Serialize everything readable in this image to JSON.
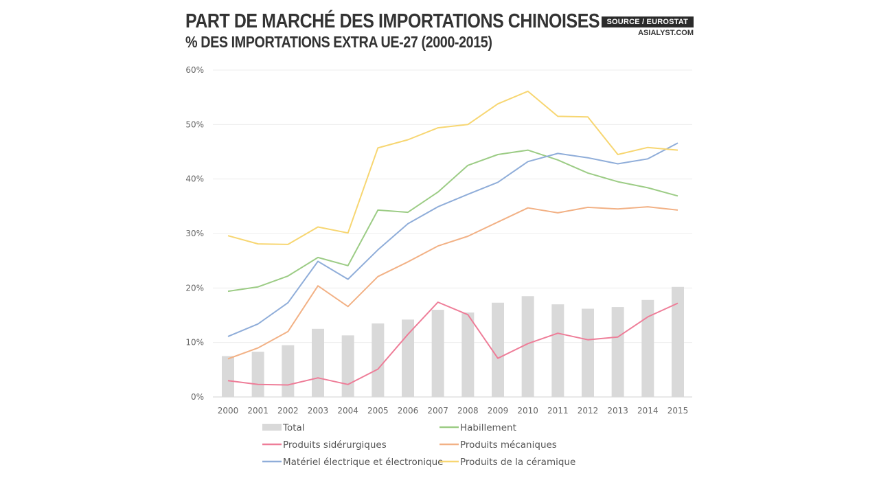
{
  "header": {
    "title": "PART DE MARCHÉ DES IMPORTATIONS CHINOISES",
    "subtitle": "% DES IMPORTATIONS EXTRA UE-27 (2000-2015)",
    "source": "SOURCE / EUROSTAT",
    "site": "ASIALYST.COM"
  },
  "chart_data": {
    "type": "bar",
    "categories": [
      "2000",
      "2001",
      "2002",
      "2003",
      "2004",
      "2005",
      "2006",
      "2007",
      "2008",
      "2009",
      "2010",
      "2011",
      "2012",
      "2013",
      "2014",
      "2015"
    ],
    "ylim": [
      0,
      60
    ],
    "yticks": [
      "0%",
      "10%",
      "20%",
      "30%",
      "40%",
      "50%",
      "60%"
    ],
    "ytick_values": [
      0,
      10,
      20,
      30,
      40,
      50,
      60
    ],
    "grid": true,
    "legend_position": "bottom",
    "bar_series": {
      "name": "Total",
      "color": "#d9d9d9",
      "values": [
        7.5,
        8.3,
        9.5,
        12.5,
        11.3,
        13.5,
        14.2,
        16.0,
        15.5,
        17.3,
        18.5,
        17.0,
        16.2,
        16.5,
        17.8,
        20.2
      ]
    },
    "series": [
      {
        "name": "Habillement",
        "color": "#9ccc85",
        "values": [
          19.4,
          20.2,
          22.2,
          25.6,
          24.1,
          34.3,
          33.9,
          37.6,
          42.5,
          44.5,
          45.3,
          43.5,
          41.1,
          39.5,
          38.4,
          36.9
        ]
      },
      {
        "name": "Produits sidérurgiques",
        "color": "#ee7d98",
        "values": [
          3.0,
          2.3,
          2.2,
          3.5,
          2.3,
          5.1,
          11.5,
          17.4,
          15.1,
          7.1,
          9.8,
          11.7,
          10.5,
          11.0,
          14.7,
          17.2
        ]
      },
      {
        "name": "Produits mécaniques",
        "color": "#f2b185",
        "values": [
          7.0,
          9.0,
          12.0,
          20.4,
          16.6,
          22.1,
          24.8,
          27.7,
          29.5,
          32.1,
          34.7,
          33.8,
          34.8,
          34.5,
          34.9,
          34.3
        ]
      },
      {
        "name": "Matériel électrique et électronique",
        "color": "#8fadd9",
        "values": [
          11.1,
          13.4,
          17.3,
          24.9,
          21.6,
          27.0,
          31.8,
          34.9,
          37.2,
          39.4,
          43.2,
          44.7,
          43.9,
          42.8,
          43.7,
          46.6
        ]
      },
      {
        "name": "Produits de la céramique",
        "color": "#f7d671",
        "values": [
          29.6,
          28.1,
          28.0,
          31.2,
          30.1,
          45.7,
          47.2,
          49.4,
          50.0,
          53.8,
          56.1,
          51.5,
          51.4,
          44.5,
          45.8,
          45.3
        ]
      }
    ],
    "legend": [
      "Total",
      "Habillement",
      "Produits sidérurgiques",
      "Produits mécaniques",
      "Matériel électrique et électronique",
      "Produits de la céramique"
    ]
  }
}
